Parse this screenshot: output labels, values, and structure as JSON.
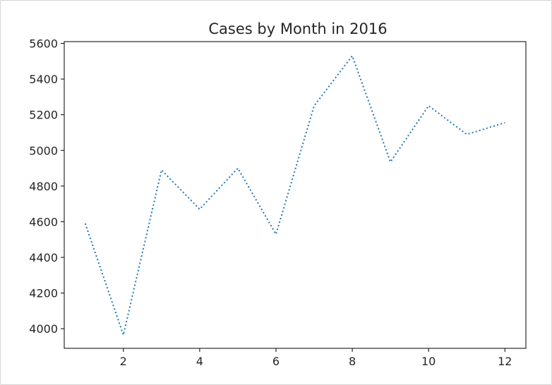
{
  "chart_data": {
    "type": "line",
    "title": "Cases by Month in 2016",
    "xlabel": "",
    "ylabel": "",
    "x": [
      1,
      2,
      3,
      4,
      5,
      6,
      7,
      8,
      9,
      10,
      11,
      12
    ],
    "series": [
      {
        "values": [
          4590,
          3965,
          4890,
          4670,
          4900,
          4530,
          5250,
          5530,
          4935,
          5250,
          5090,
          5155
        ]
      }
    ],
    "xlim": [
      0.45,
      12.55
    ],
    "ylim": [
      3890,
      5610
    ],
    "xticks": [
      2,
      4,
      6,
      8,
      10,
      12
    ],
    "yticks": [
      4000,
      4200,
      4400,
      4600,
      4800,
      5000,
      5200,
      5400,
      5600
    ],
    "line_color": "#1f77b4",
    "line_style": "dotted",
    "grid": false,
    "legend": "none"
  }
}
